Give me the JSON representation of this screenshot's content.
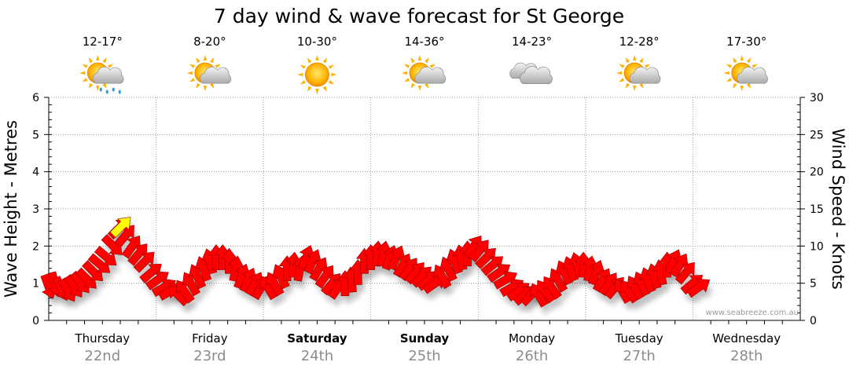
{
  "title": "7 day wind & wave forecast for St George",
  "watermark": "www.seabreeze.com.au",
  "colors": {
    "arrow": "#ff0000",
    "arrow_stroke": "#9a0000",
    "peak_arrow": "#ffff00",
    "grid": "#9a9a9a"
  },
  "chart_data": {
    "type": "line",
    "y_left": {
      "label": "Wave Height - Metres",
      "min": 0,
      "max": 6,
      "ticks": [
        0,
        1,
        2,
        3,
        4,
        5,
        6
      ]
    },
    "y_right": {
      "label": "Wind Speed - Knots",
      "min": 0,
      "max": 30,
      "ticks": [
        0,
        5,
        10,
        15,
        20,
        25,
        30
      ]
    },
    "days": [
      {
        "name": "Thursday",
        "date": "22nd",
        "bold": false,
        "temp": "12-17°",
        "weather_icon": "sun-cloud-rain-icon"
      },
      {
        "name": "Friday",
        "date": "23rd",
        "bold": false,
        "temp": "8-20°",
        "weather_icon": "sun-cloud-icon"
      },
      {
        "name": "Saturday",
        "date": "24th",
        "bold": true,
        "temp": "10-30°",
        "weather_icon": "sun-icon"
      },
      {
        "name": "Sunday",
        "date": "25th",
        "bold": true,
        "temp": "14-36°",
        "weather_icon": "sun-cloud-icon"
      },
      {
        "name": "Monday",
        "date": "26th",
        "bold": false,
        "temp": "14-23°",
        "weather_icon": "cloud-icon"
      },
      {
        "name": "Tuesday",
        "date": "27th",
        "bold": false,
        "temp": "12-28°",
        "weather_icon": "sun-cloud-icon"
      },
      {
        "name": "Wednesday",
        "date": "28th",
        "bold": false,
        "temp": "17-30°",
        "weather_icon": "sun-cloud-icon"
      }
    ],
    "wind_series": {
      "name": "Wind Speed - Knots",
      "unit": "knots",
      "x_unit": "days from start of Thursday",
      "points": [
        {
          "x": 0.0,
          "speed": 4.5,
          "dir": 250
        },
        {
          "x": 0.06,
          "speed": 4.8,
          "dir": 255
        },
        {
          "x": 0.12,
          "speed": 4.2,
          "dir": 245
        },
        {
          "x": 0.18,
          "speed": 4.0,
          "dir": 240
        },
        {
          "x": 0.24,
          "speed": 4.5,
          "dir": 235
        },
        {
          "x": 0.3,
          "speed": 5.0,
          "dir": 230
        },
        {
          "x": 0.36,
          "speed": 5.5,
          "dir": 225
        },
        {
          "x": 0.42,
          "speed": 6.5,
          "dir": 225
        },
        {
          "x": 0.48,
          "speed": 7.5,
          "dir": 220
        },
        {
          "x": 0.54,
          "speed": 8.5,
          "dir": 220
        },
        {
          "x": 0.6,
          "speed": 10.0,
          "dir": 225
        },
        {
          "x": 0.66,
          "speed": 12.5,
          "dir": 135
        },
        {
          "x": 0.72,
          "speed": 11.5,
          "dir": 130
        },
        {
          "x": 0.78,
          "speed": 10.0,
          "dir": 125
        },
        {
          "x": 0.84,
          "speed": 9.0,
          "dir": 130
        },
        {
          "x": 0.9,
          "speed": 8.0,
          "dir": 135
        },
        {
          "x": 0.96,
          "speed": 6.5,
          "dir": 140
        },
        {
          "x": 1.02,
          "speed": 5.5,
          "dir": 145
        },
        {
          "x": 1.08,
          "speed": 4.5,
          "dir": 150
        },
        {
          "x": 1.14,
          "speed": 4.0,
          "dir": 150
        },
        {
          "x": 1.2,
          "speed": 3.5,
          "dir": 45
        },
        {
          "x": 1.26,
          "speed": 4.0,
          "dir": 55
        },
        {
          "x": 1.32,
          "speed": 5.0,
          "dir": 60
        },
        {
          "x": 1.38,
          "speed": 6.0,
          "dir": 65
        },
        {
          "x": 1.44,
          "speed": 7.0,
          "dir": 70
        },
        {
          "x": 1.5,
          "speed": 8.0,
          "dir": 75
        },
        {
          "x": 1.56,
          "speed": 8.5,
          "dir": 90
        },
        {
          "x": 1.62,
          "speed": 8.5,
          "dir": 90
        },
        {
          "x": 1.68,
          "speed": 8.0,
          "dir": 90
        },
        {
          "x": 1.74,
          "speed": 7.0,
          "dir": 100
        },
        {
          "x": 1.8,
          "speed": 6.0,
          "dir": 110
        },
        {
          "x": 1.86,
          "speed": 5.5,
          "dir": 115
        },
        {
          "x": 1.92,
          "speed": 5.0,
          "dir": 120
        },
        {
          "x": 1.98,
          "speed": 4.5,
          "dir": 120
        },
        {
          "x": 2.04,
          "speed": 4.5,
          "dir": 60
        },
        {
          "x": 2.1,
          "speed": 5.0,
          "dir": 60
        },
        {
          "x": 2.16,
          "speed": 6.0,
          "dir": 65
        },
        {
          "x": 2.22,
          "speed": 7.0,
          "dir": 90
        },
        {
          "x": 2.28,
          "speed": 7.5,
          "dir": 95
        },
        {
          "x": 2.34,
          "speed": 7.0,
          "dir": 100
        },
        {
          "x": 2.4,
          "speed": 8.5,
          "dir": 110
        },
        {
          "x": 2.46,
          "speed": 8.0,
          "dir": 115
        },
        {
          "x": 2.52,
          "speed": 7.0,
          "dir": 120
        },
        {
          "x": 2.58,
          "speed": 6.0,
          "dir": 125
        },
        {
          "x": 2.64,
          "speed": 5.0,
          "dir": 130
        },
        {
          "x": 2.7,
          "speed": 4.5,
          "dir": 125
        },
        {
          "x": 2.76,
          "speed": 5.0,
          "dir": 90
        },
        {
          "x": 2.82,
          "speed": 5.5,
          "dir": 85
        },
        {
          "x": 2.88,
          "speed": 6.5,
          "dir": 90
        },
        {
          "x": 2.94,
          "speed": 8.0,
          "dir": 90
        },
        {
          "x": 3.0,
          "speed": 8.5,
          "dir": 90
        },
        {
          "x": 3.06,
          "speed": 9.0,
          "dir": 95
        },
        {
          "x": 3.12,
          "speed": 9.0,
          "dir": 100
        },
        {
          "x": 3.18,
          "speed": 8.5,
          "dir": 110
        },
        {
          "x": 3.24,
          "speed": 8.5,
          "dir": 115
        },
        {
          "x": 3.3,
          "speed": 7.5,
          "dir": 120
        },
        {
          "x": 3.36,
          "speed": 7.0,
          "dir": 125
        },
        {
          "x": 3.42,
          "speed": 6.5,
          "dir": 130
        },
        {
          "x": 3.48,
          "speed": 6.0,
          "dir": 135
        },
        {
          "x": 3.54,
          "speed": 5.5,
          "dir": 140
        },
        {
          "x": 3.6,
          "speed": 5.0,
          "dir": 145
        },
        {
          "x": 3.66,
          "speed": 6.0,
          "dir": 60
        },
        {
          "x": 3.72,
          "speed": 7.0,
          "dir": 65
        },
        {
          "x": 3.78,
          "speed": 8.0,
          "dir": 70
        },
        {
          "x": 3.84,
          "speed": 8.5,
          "dir": 80
        },
        {
          "x": 3.9,
          "speed": 9.0,
          "dir": 90
        },
        {
          "x": 3.96,
          "speed": 10.0,
          "dir": 125
        },
        {
          "x": 4.02,
          "speed": 9.5,
          "dir": 130
        },
        {
          "x": 4.08,
          "speed": 8.5,
          "dir": 135
        },
        {
          "x": 4.14,
          "speed": 7.5,
          "dir": 140
        },
        {
          "x": 4.2,
          "speed": 6.5,
          "dir": 145
        },
        {
          "x": 4.26,
          "speed": 5.5,
          "dir": 150
        },
        {
          "x": 4.32,
          "speed": 4.5,
          "dir": 150
        },
        {
          "x": 4.38,
          "speed": 4.0,
          "dir": 145
        },
        {
          "x": 4.44,
          "speed": 3.5,
          "dir": 140
        },
        {
          "x": 4.5,
          "speed": 3.5,
          "dir": 135
        },
        {
          "x": 4.56,
          "speed": 3.5,
          "dir": 60
        },
        {
          "x": 4.62,
          "speed": 4.0,
          "dir": 55
        },
        {
          "x": 4.68,
          "speed": 4.5,
          "dir": 55
        },
        {
          "x": 4.74,
          "speed": 5.5,
          "dir": 60
        },
        {
          "x": 4.8,
          "speed": 6.5,
          "dir": 65
        },
        {
          "x": 4.86,
          "speed": 7.0,
          "dir": 70
        },
        {
          "x": 4.92,
          "speed": 7.5,
          "dir": 75
        },
        {
          "x": 4.98,
          "speed": 7.5,
          "dir": 90
        },
        {
          "x": 5.04,
          "speed": 7.0,
          "dir": 100
        },
        {
          "x": 5.1,
          "speed": 6.5,
          "dir": 110
        },
        {
          "x": 5.16,
          "speed": 5.5,
          "dir": 120
        },
        {
          "x": 5.22,
          "speed": 5.0,
          "dir": 125
        },
        {
          "x": 5.28,
          "speed": 4.5,
          "dir": 130
        },
        {
          "x": 5.34,
          "speed": 4.0,
          "dir": 60
        },
        {
          "x": 5.4,
          "speed": 4.0,
          "dir": 55
        },
        {
          "x": 5.46,
          "speed": 4.5,
          "dir": 60
        },
        {
          "x": 5.52,
          "speed": 5.0,
          "dir": 65
        },
        {
          "x": 5.58,
          "speed": 5.5,
          "dir": 70
        },
        {
          "x": 5.64,
          "speed": 6.0,
          "dir": 75
        },
        {
          "x": 5.7,
          "speed": 6.5,
          "dir": 80
        },
        {
          "x": 5.76,
          "speed": 7.5,
          "dir": 90
        },
        {
          "x": 5.82,
          "speed": 8.0,
          "dir": 115
        },
        {
          "x": 5.88,
          "speed": 7.5,
          "dir": 120
        },
        {
          "x": 5.94,
          "speed": 6.5,
          "dir": 130
        },
        {
          "x": 6.0,
          "speed": 5.0,
          "dir": 140
        },
        {
          "x": 6.06,
          "speed": 4.5,
          "dir": 145
        }
      ],
      "peak_point": {
        "x": 0.68,
        "speed": 12.7,
        "dir": 135
      }
    }
  }
}
